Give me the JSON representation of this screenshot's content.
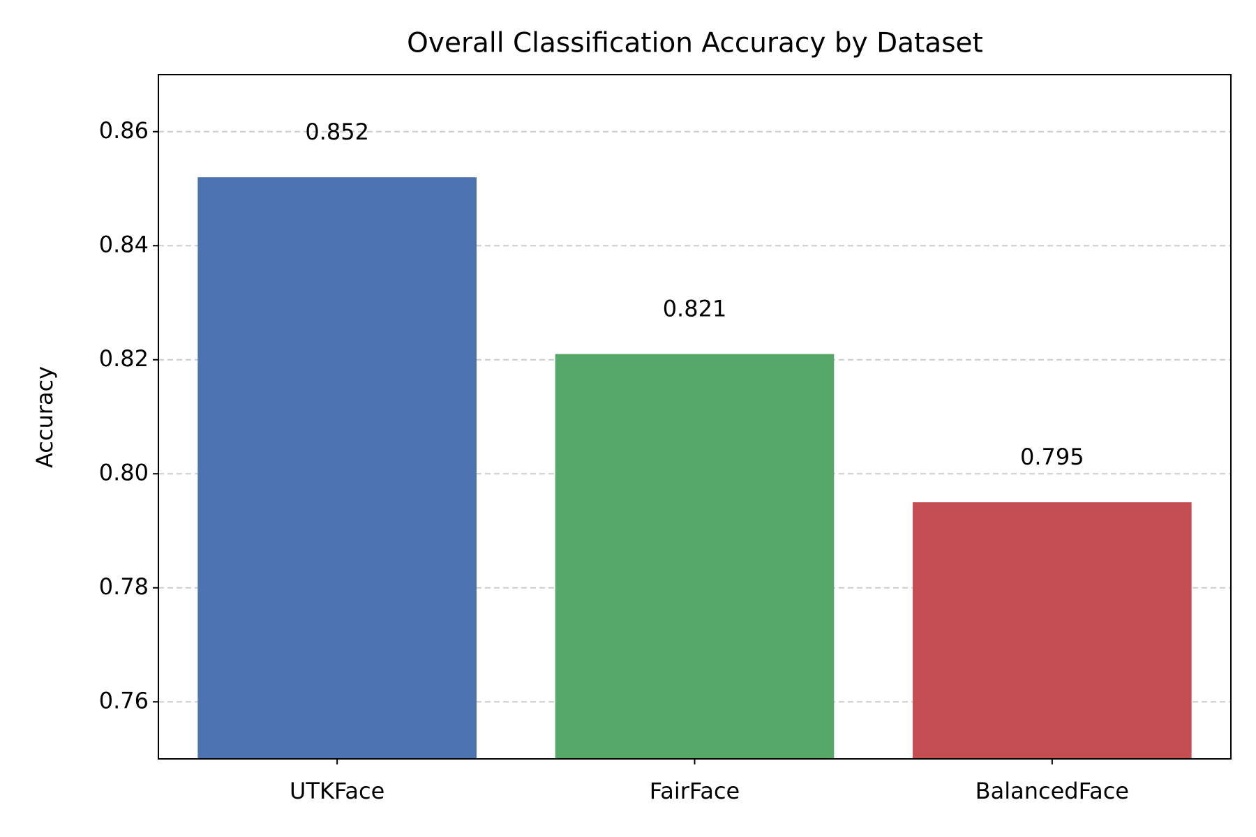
{
  "chart_data": {
    "type": "bar",
    "title": "Overall Classification Accuracy by Dataset",
    "y_label": "Accuracy",
    "categories": [
      "UTKFace",
      "FairFace",
      "BalancedFace"
    ],
    "values": [
      0.852,
      0.821,
      0.795
    ],
    "colors": [
      "#4c72b0",
      "#55a868",
      "#c44e52"
    ],
    "ylim": [
      0.75,
      0.87
    ],
    "yticks": [
      0.76,
      0.78,
      {
        "value": 0.8,
        "label": "0.80"
      },
      0.82,
      0.84,
      0.86
    ],
    "grid": true
  }
}
